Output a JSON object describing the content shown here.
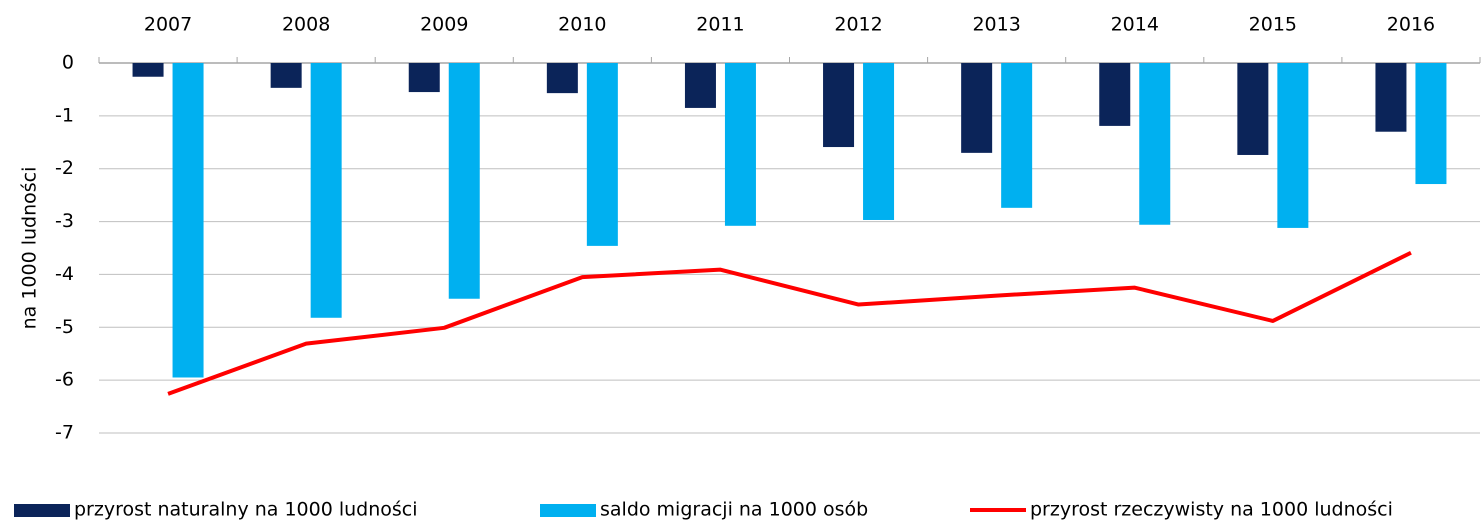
{
  "chart_data": {
    "type": "bar_line",
    "y_label": "na 1000 ludności",
    "categories": [
      "2007",
      "2008",
      "2009",
      "2010",
      "2011",
      "2012",
      "2013",
      "2014",
      "2015",
      "2016"
    ],
    "series": [
      {
        "name": "przyrost naturalny na 1000 ludności",
        "type": "bar",
        "color": "#0b2459",
        "values": [
          -0.26,
          -0.47,
          -0.55,
          -0.57,
          -0.85,
          -1.59,
          -1.7,
          -1.19,
          -1.74,
          -1.3
        ]
      },
      {
        "name": "saldo migracji na 1000 osób",
        "type": "bar",
        "color": "#00b0f0",
        "values": [
          -5.95,
          -4.82,
          -4.46,
          -3.46,
          -3.08,
          -2.97,
          -2.74,
          -3.06,
          -3.12,
          -2.29
        ]
      },
      {
        "name": "przyrost rzeczywisty na 1000 ludności",
        "type": "line",
        "color": "#ff0000",
        "values": [
          -6.26,
          -5.31,
          -5.01,
          -4.05,
          -3.91,
          -4.57,
          -4.4,
          -4.25,
          -4.88,
          -3.59
        ]
      }
    ],
    "ylim": [
      -7,
      0
    ],
    "yticks": [
      0,
      -1,
      -2,
      -3,
      -4,
      -5,
      -6,
      -7
    ],
    "grid": true
  }
}
